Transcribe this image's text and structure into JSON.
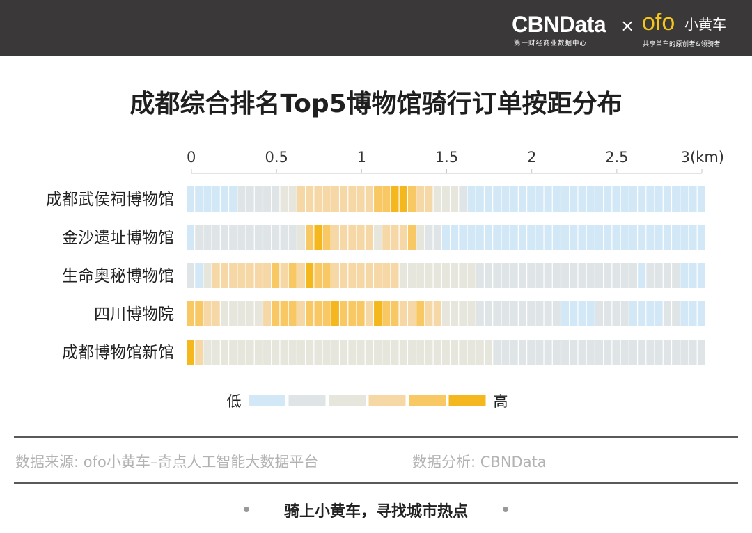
{
  "header": {
    "cbn_logo": "CBNData",
    "cbn_sub": "第一财经商业数据中心",
    "times_icon": "×",
    "ofo_logo": "ofo",
    "ofo_cn": "小黄车",
    "ofo_sub": "共享单车的原创者&领骑者"
  },
  "chart_data": {
    "type": "heatmap",
    "title": "成都综合排名Top5博物馆骑行订单按距分布",
    "x_ticks": [
      "0",
      "0.5",
      "1",
      "1.5",
      "2",
      "2.5",
      "3(km)"
    ],
    "x_range": [
      0,
      3
    ],
    "bin_count": 61,
    "rows": [
      {
        "name": "成都武侯祠博物馆",
        "levels": [
          0,
          0,
          0,
          0,
          0,
          0,
          1,
          1,
          1,
          1,
          1,
          2,
          2,
          3,
          3,
          3,
          3,
          3,
          3,
          3,
          3,
          3,
          4,
          4,
          5,
          5,
          4,
          3,
          3,
          2,
          2,
          2,
          1,
          0,
          0,
          0,
          0,
          0,
          0,
          0,
          0,
          0,
          0,
          0,
          0,
          0,
          0,
          0,
          0,
          0,
          0,
          0,
          0,
          0,
          0,
          0,
          0,
          0,
          0,
          0,
          0
        ]
      },
      {
        "name": "金沙遗址博物馆",
        "levels": [
          0,
          1,
          1,
          1,
          1,
          1,
          1,
          1,
          1,
          1,
          1,
          1,
          1,
          2,
          4,
          5,
          4,
          3,
          3,
          3,
          3,
          3,
          2,
          3,
          3,
          3,
          4,
          2,
          1,
          1,
          0,
          0,
          0,
          0,
          0,
          0,
          0,
          0,
          0,
          0,
          0,
          0,
          0,
          0,
          0,
          0,
          0,
          0,
          0,
          0,
          0,
          0,
          0,
          0,
          0,
          0,
          0,
          0,
          0,
          0,
          0
        ]
      },
      {
        "name": "生命奥秘博物馆",
        "levels": [
          1,
          0,
          2,
          3,
          3,
          3,
          3,
          3,
          3,
          3,
          4,
          3,
          4,
          3,
          5,
          4,
          4,
          3,
          3,
          3,
          3,
          3,
          3,
          3,
          3,
          2,
          2,
          2,
          2,
          2,
          2,
          2,
          2,
          2,
          1,
          1,
          1,
          1,
          1,
          1,
          1,
          1,
          1,
          1,
          1,
          1,
          1,
          1,
          1,
          1,
          1,
          1,
          1,
          0,
          1,
          1,
          1,
          1,
          0,
          0,
          0
        ]
      },
      {
        "name": "四川博物院",
        "levels": [
          4,
          4,
          3,
          3,
          2,
          2,
          2,
          2,
          2,
          3,
          4,
          4,
          4,
          3,
          4,
          4,
          4,
          5,
          4,
          4,
          4,
          3,
          5,
          4,
          4,
          3,
          3,
          4,
          3,
          3,
          2,
          2,
          2,
          2,
          1,
          1,
          1,
          1,
          1,
          1,
          1,
          1,
          1,
          1,
          0,
          0,
          0,
          0,
          1,
          1,
          1,
          1,
          0,
          0,
          0,
          0,
          1,
          1,
          0,
          0,
          0
        ]
      },
      {
        "name": "成都博物馆新馆",
        "levels": [
          5,
          3,
          2,
          2,
          2,
          2,
          2,
          2,
          2,
          2,
          2,
          2,
          2,
          2,
          2,
          2,
          2,
          2,
          2,
          2,
          2,
          2,
          2,
          2,
          2,
          2,
          2,
          2,
          2,
          2,
          2,
          2,
          2,
          2,
          2,
          2,
          1,
          1,
          1,
          1,
          1,
          1,
          1,
          1,
          1,
          1,
          1,
          1,
          1,
          1,
          1,
          1,
          1,
          1,
          1,
          1,
          1,
          1,
          1,
          1,
          1
        ]
      }
    ],
    "color_scale": [
      "#d2e8f6",
      "#dfe5e7",
      "#e7e6dd",
      "#f6d7a6",
      "#f8c865",
      "#f5b71e"
    ],
    "legend": {
      "low": "低",
      "high": "高"
    }
  },
  "footer": {
    "source": "数据来源: ofo小黄车–奇点人工智能大数据平台",
    "analysis": "数据分析: CBNData",
    "slogan": "骑上小黄车，寻找城市热点"
  }
}
